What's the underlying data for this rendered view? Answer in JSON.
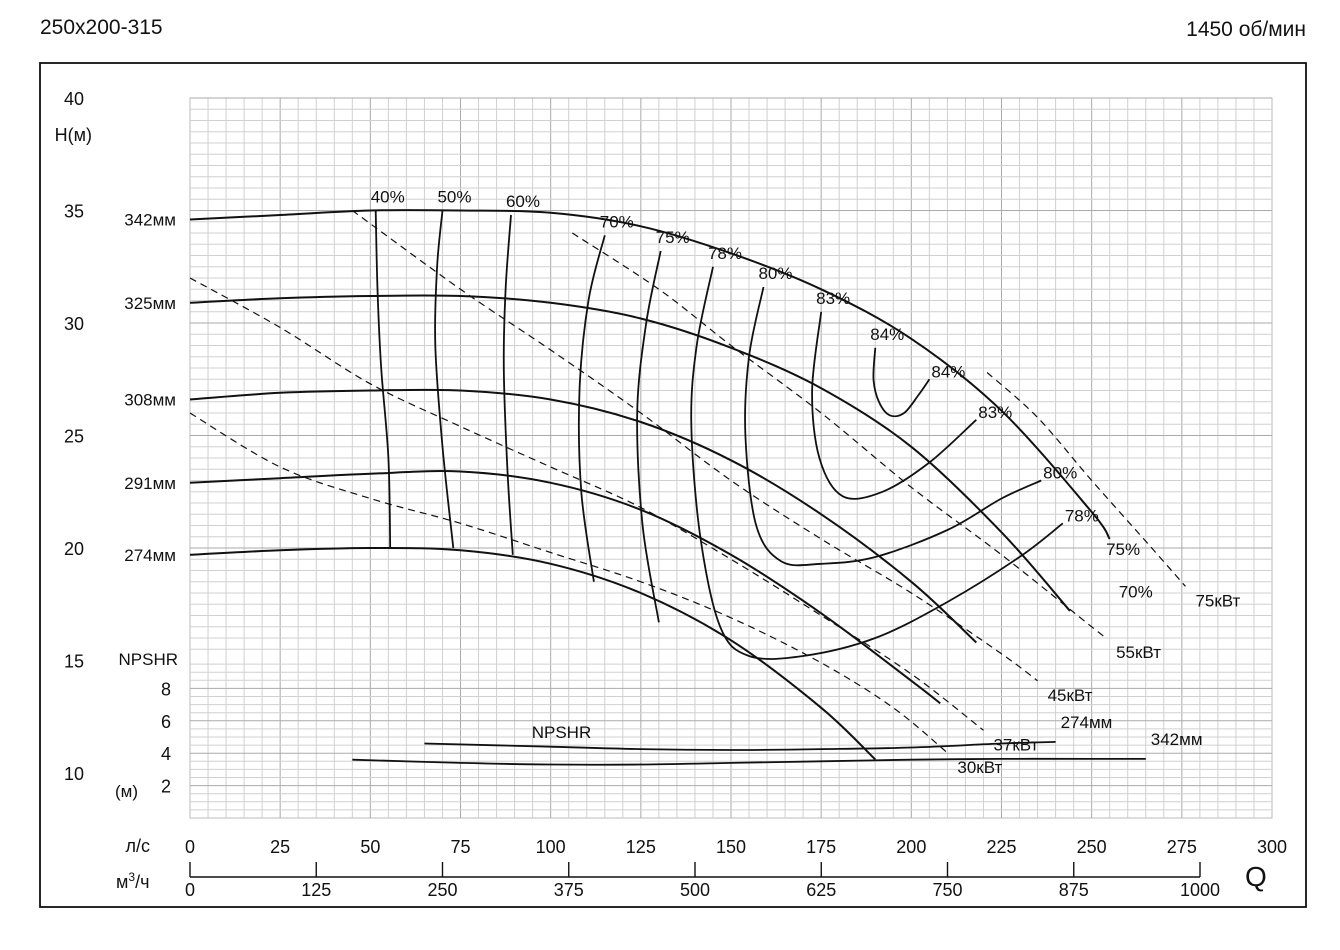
{
  "header": {
    "model": "250х200-315",
    "speed": "1450 об/мин"
  },
  "chart_data": {
    "type": "line",
    "title": "",
    "head_axis": {
      "label": "H(м)",
      "range": [
        8,
        40
      ],
      "ticks": [
        10,
        15,
        20,
        25,
        30,
        35,
        40
      ]
    },
    "npsh_axis": {
      "title": "NPSHR",
      "unit": "(м)",
      "range": [
        0,
        10
      ],
      "ticks": [
        2,
        4,
        6,
        8
      ]
    },
    "flow_axis": {
      "symbol": "Q",
      "ls_label": "л/с",
      "ls_ticks": [
        0,
        25,
        50,
        75,
        100,
        125,
        150,
        175,
        200,
        225,
        250,
        275,
        300
      ],
      "m3h_label": "м",
      "m3h_sup": "3",
      "m3h_tail": "/ч",
      "m3h_ticks": [
        0,
        125,
        250,
        375,
        500,
        625,
        750,
        875,
        1000
      ]
    },
    "grid": true,
    "impeller_curves": [
      {
        "name": "342мм",
        "points": [
          [
            0,
            34.6
          ],
          [
            25,
            34.8
          ],
          [
            50,
            35.0
          ],
          [
            75,
            35.0
          ],
          [
            100,
            34.9
          ],
          [
            125,
            34.3
          ],
          [
            150,
            33.1
          ],
          [
            175,
            31.5
          ],
          [
            200,
            29.3
          ],
          [
            225,
            26.1
          ],
          [
            250,
            21.6
          ],
          [
            255,
            20.4
          ]
        ]
      },
      {
        "name": "325мм",
        "points": [
          [
            0,
            30.9
          ],
          [
            25,
            31.1
          ],
          [
            50,
            31.2
          ],
          [
            75,
            31.2
          ],
          [
            100,
            30.9
          ],
          [
            125,
            30.2
          ],
          [
            150,
            28.9
          ],
          [
            175,
            27.1
          ],
          [
            200,
            24.5
          ],
          [
            225,
            20.7
          ],
          [
            244,
            17.2
          ]
        ]
      },
      {
        "name": "308мм",
        "points": [
          [
            0,
            26.6
          ],
          [
            25,
            26.9
          ],
          [
            50,
            27.0
          ],
          [
            75,
            27.0
          ],
          [
            100,
            26.6
          ],
          [
            125,
            25.6
          ],
          [
            150,
            23.9
          ],
          [
            175,
            21.5
          ],
          [
            200,
            18.5
          ],
          [
            218,
            15.8
          ]
        ]
      },
      {
        "name": "291мм",
        "points": [
          [
            0,
            22.9
          ],
          [
            25,
            23.1
          ],
          [
            50,
            23.3
          ],
          [
            75,
            23.4
          ],
          [
            100,
            22.9
          ],
          [
            125,
            21.7
          ],
          [
            150,
            19.7
          ],
          [
            175,
            17.1
          ],
          [
            200,
            14.1
          ],
          [
            208,
            13.1
          ]
        ]
      },
      {
        "name": "274мм",
        "points": [
          [
            0,
            19.7
          ],
          [
            25,
            19.9
          ],
          [
            50,
            20.0
          ],
          [
            75,
            19.9
          ],
          [
            100,
            19.3
          ],
          [
            125,
            18.0
          ],
          [
            150,
            15.9
          ],
          [
            175,
            12.9
          ],
          [
            190,
            10.6
          ]
        ]
      }
    ],
    "efficiency_curves": [
      {
        "name": "40%",
        "points": [
          [
            51.5,
            35.0
          ],
          [
            52,
            31.5
          ],
          [
            53,
            28.0
          ],
          [
            55,
            24.0
          ],
          [
            55.5,
            20.0
          ]
        ]
      },
      {
        "name": "50%",
        "points": [
          [
            70,
            35.0
          ],
          [
            68.5,
            32.5
          ],
          [
            68,
            29.0
          ],
          [
            70,
            24.5
          ],
          [
            73,
            20.0
          ]
        ]
      },
      {
        "name": "60%",
        "points": [
          [
            89,
            34.8
          ],
          [
            87.5,
            31.5
          ],
          [
            87,
            28.0
          ],
          [
            88,
            23.5
          ],
          [
            89.5,
            19.7
          ]
        ]
      },
      {
        "name": "70%",
        "points": [
          [
            115,
            33.9
          ],
          [
            110.5,
            31.0
          ],
          [
            108,
            27.0
          ],
          [
            108.5,
            22.5
          ],
          [
            112,
            18.5
          ]
        ]
      },
      {
        "name": "75%",
        "points": [
          [
            130.5,
            33.2
          ],
          [
            126.5,
            30.0
          ],
          [
            124,
            26.0
          ],
          [
            125.5,
            21.0
          ],
          [
            130,
            16.7
          ]
        ]
      },
      {
        "name": "78%",
        "points": [
          [
            145,
            32.5
          ],
          [
            140.5,
            29.0
          ],
          [
            139,
            25.5
          ],
          [
            141.5,
            20.5
          ],
          [
            147,
            16.5
          ],
          [
            155,
            15.2
          ],
          [
            170,
            15.2
          ],
          [
            190,
            16.0
          ],
          [
            210,
            17.6
          ],
          [
            230,
            19.6
          ],
          [
            242,
            21.1
          ]
        ]
      },
      {
        "name": "80%",
        "points": [
          [
            159,
            31.6
          ],
          [
            155,
            28.5
          ],
          [
            154,
            25.0
          ],
          [
            157,
            21.0
          ],
          [
            164,
            19.4
          ],
          [
            175,
            19.3
          ],
          [
            190,
            19.6
          ],
          [
            210,
            20.8
          ],
          [
            225,
            22.2
          ],
          [
            236,
            23.0
          ]
        ]
      },
      {
        "name": "83%",
        "points": [
          [
            175,
            30.5
          ],
          [
            172.5,
            27.0
          ],
          [
            174.5,
            24.0
          ],
          [
            181,
            22.3
          ],
          [
            192,
            22.5
          ],
          [
            205,
            23.8
          ],
          [
            218,
            25.7
          ]
        ]
      },
      {
        "name": "84%",
        "points": [
          [
            190,
            28.9
          ],
          [
            189.5,
            27.5
          ],
          [
            191,
            26.5
          ],
          [
            194,
            25.9
          ],
          [
            198,
            26.0
          ],
          [
            202,
            26.8
          ],
          [
            205,
            27.5
          ]
        ]
      }
    ],
    "power_curves": [
      {
        "name": "30кВт",
        "points": [
          [
            0,
            26.0
          ],
          [
            25,
            23.6
          ],
          [
            50,
            22.2
          ],
          [
            75,
            21.1
          ],
          [
            100,
            19.8
          ],
          [
            125,
            18.5
          ],
          [
            150,
            16.9
          ],
          [
            175,
            14.9
          ],
          [
            195,
            12.9
          ],
          [
            210,
            10.9
          ]
        ]
      },
      {
        "name": "37кВт",
        "points": [
          [
            0,
            32.0
          ],
          [
            25,
            29.8
          ],
          [
            50,
            27.3
          ],
          [
            75,
            25.4
          ],
          [
            100,
            23.6
          ],
          [
            125,
            21.8
          ],
          [
            150,
            19.5
          ],
          [
            175,
            17.0
          ],
          [
            200,
            14.4
          ],
          [
            220,
            11.9
          ]
        ]
      },
      {
        "name": "45кВт",
        "points": [
          [
            45,
            35.0
          ],
          [
            75,
            31.5
          ],
          [
            100,
            28.8
          ],
          [
            125,
            26.0
          ],
          [
            150,
            23.0
          ],
          [
            175,
            20.4
          ],
          [
            200,
            18.0
          ],
          [
            225,
            15.3
          ],
          [
            235,
            14.1
          ]
        ]
      },
      {
        "name": "55кВт",
        "points": [
          [
            106,
            34.0
          ],
          [
            130,
            31.5
          ],
          [
            150,
            29.0
          ],
          [
            175,
            26.0
          ],
          [
            200,
            22.7
          ],
          [
            225,
            19.7
          ],
          [
            250,
            16.5
          ],
          [
            254,
            16.0
          ]
        ]
      },
      {
        "name": "75кВт",
        "points": [
          [
            221,
            27.8
          ],
          [
            235,
            25.8
          ],
          [
            250,
            23.0
          ],
          [
            265,
            20.3
          ],
          [
            276,
            18.3
          ]
        ]
      }
    ],
    "npsh_curves": [
      {
        "name": "274мм",
        "points": [
          [
            65,
            4.6
          ],
          [
            100,
            4.4
          ],
          [
            125,
            4.25
          ],
          [
            150,
            4.2
          ],
          [
            175,
            4.25
          ],
          [
            200,
            4.35
          ],
          [
            225,
            4.6
          ],
          [
            240,
            4.7
          ]
        ]
      },
      {
        "name": "342мм",
        "points": [
          [
            45,
            3.6
          ],
          [
            75,
            3.4
          ],
          [
            100,
            3.3
          ],
          [
            125,
            3.3
          ],
          [
            150,
            3.4
          ],
          [
            175,
            3.5
          ],
          [
            200,
            3.6
          ],
          [
            225,
            3.65
          ],
          [
            250,
            3.65
          ],
          [
            265,
            3.65
          ]
        ]
      }
    ],
    "npsh_series_label": "NPSHR"
  }
}
